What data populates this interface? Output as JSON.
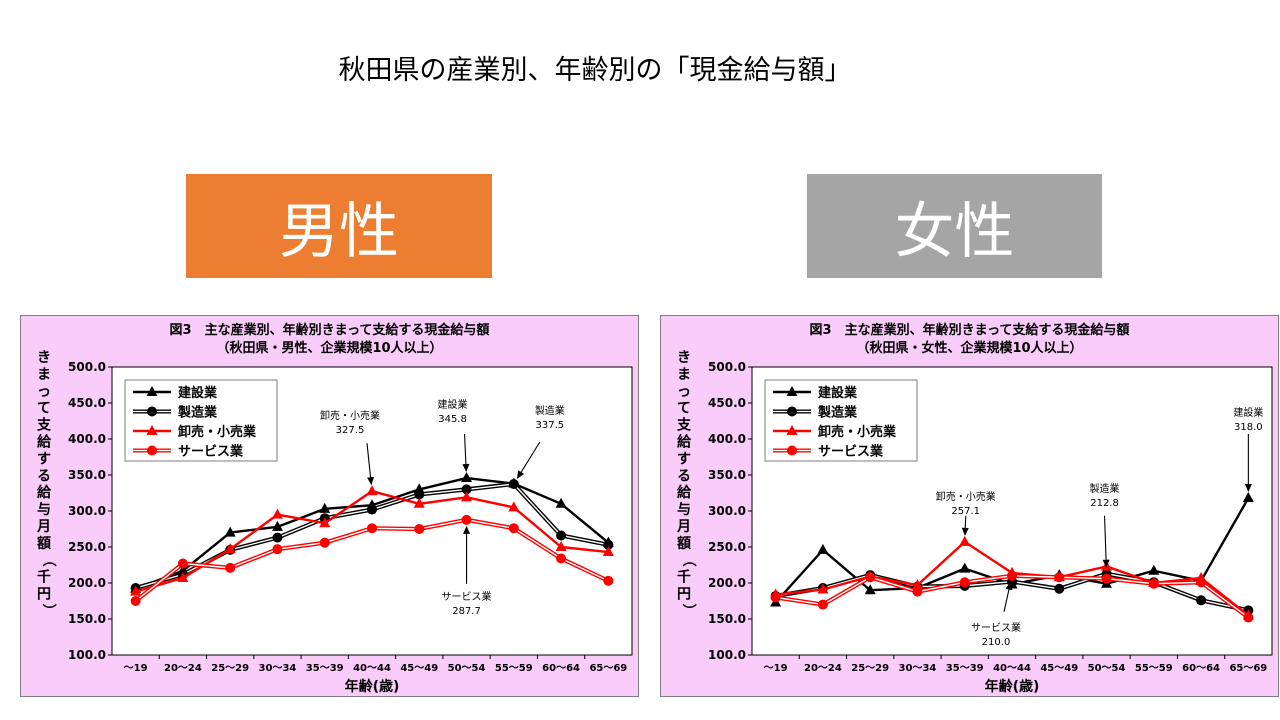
{
  "page_title": "秋田県の産業別、年齢別の「現金給与額」",
  "colors": {
    "male_box": "#ed7d31",
    "female_box": "#a5a5a5",
    "panel_bg": "#f9ccf9"
  },
  "male_box_label": "男性",
  "female_box_label": "女性",
  "chart_data": [
    {
      "type": "line",
      "title": "図3　主な産業別、年齢別きまって支給する現金給与額",
      "subtitle": "（秋田県・男性、企業規模10人以上）",
      "ylabel": "きまって支給する給与月額（千円）",
      "xlabel": "年齢(歳)",
      "ylim": [
        100,
        500
      ],
      "yticks": [
        "100.0",
        "150.0",
        "200.0",
        "250.0",
        "300.0",
        "350.0",
        "400.0",
        "450.0",
        "500.0"
      ],
      "categories": [
        "～19",
        "20～24",
        "25～29",
        "30～34",
        "35～39",
        "40～44",
        "45～49",
        "50～54",
        "55～59",
        "60～64",
        "65～69"
      ],
      "legend_position": "top-left",
      "series": [
        {
          "name": "建設業",
          "color": "#000000",
          "marker": "triangle",
          "values": [
            192,
            217,
            270,
            278,
            303,
            308,
            330,
            345.8,
            338,
            310,
            256
          ]
        },
        {
          "name": "製造業",
          "color": "#000000",
          "marker": "circle",
          "values": [
            193,
            212,
            246,
            263,
            290,
            302,
            323,
            330,
            337.5,
            266,
            253
          ]
        },
        {
          "name": "卸売・小売業",
          "color": "#ff0000",
          "marker": "triangle",
          "values": [
            188,
            207,
            247,
            295,
            283,
            327.5,
            310,
            319,
            305,
            250,
            243
          ]
        },
        {
          "name": "サービス業",
          "color": "#ff0000",
          "marker": "circle",
          "values": [
            175,
            227,
            221,
            247,
            256,
            276,
            275,
            287.7,
            276,
            234,
            203
          ]
        }
      ],
      "annotations": [
        {
          "series": "卸売・小売業",
          "index": 5,
          "line1": "卸売・小売業",
          "line2": "327.5"
        },
        {
          "series": "建設業",
          "index": 7,
          "line1": "建設業",
          "line2": "345.8"
        },
        {
          "series": "製造業",
          "index": 8,
          "line1": "製造業",
          "line2": "337.5"
        },
        {
          "series": "サービス業",
          "index": 7,
          "line1": "サービス業",
          "line2": "287.7"
        }
      ]
    },
    {
      "type": "line",
      "title": "図3　主な産業別、年齢別きまって支給する現金給与額",
      "subtitle": "（秋田県・女性、企業規模10人以上）",
      "ylabel": "きまって支給する給与月額（千円）",
      "xlabel": "年齢(歳)",
      "ylim": [
        100,
        500
      ],
      "yticks": [
        "100.0",
        "150.0",
        "200.0",
        "250.0",
        "300.0",
        "350.0",
        "400.0",
        "450.0",
        "500.0"
      ],
      "categories": [
        "～19",
        "20～24",
        "25～29",
        "30～34",
        "35～39",
        "40～44",
        "45～49",
        "50～54",
        "55～59",
        "60～64",
        "65～69"
      ],
      "legend_position": "top-left",
      "series": [
        {
          "name": "建設業",
          "color": "#000000",
          "marker": "triangle",
          "values": [
            173,
            246,
            190,
            193,
            220,
            198,
            211,
            199,
            217,
            203,
            318.0
          ]
        },
        {
          "name": "製造業",
          "color": "#000000",
          "marker": "circle",
          "values": [
            182,
            193,
            211,
            195,
            196,
            202,
            192,
            212.8,
            201,
            176,
            162
          ]
        },
        {
          "name": "卸売・小売業",
          "color": "#ff0000",
          "marker": "triangle",
          "values": [
            184,
            191,
            209,
            197,
            257.1,
            214,
            208,
            223,
            200,
            207,
            155
          ]
        },
        {
          "name": "サービス業",
          "color": "#ff0000",
          "marker": "circle",
          "values": [
            180,
            170,
            208,
            188,
            201,
            210.0,
            208,
            206,
            199,
            201,
            152
          ]
        }
      ],
      "annotations": [
        {
          "series": "卸売・小売業",
          "index": 4,
          "line1": "卸売・小売業",
          "line2": "257.1"
        },
        {
          "series": "製造業",
          "index": 7,
          "line1": "製造業",
          "line2": "212.8"
        },
        {
          "series": "建設業",
          "index": 10,
          "line1": "建設業",
          "line2": "318.0"
        },
        {
          "series": "サービス業",
          "index": 5,
          "line1": "サービス業",
          "line2": "210.0"
        }
      ]
    }
  ]
}
